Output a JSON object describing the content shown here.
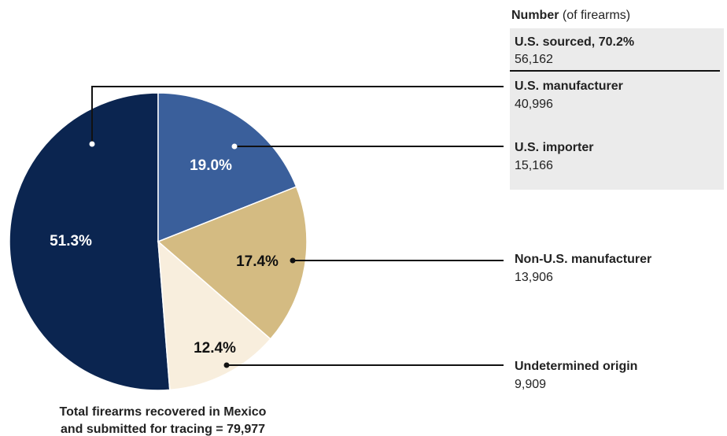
{
  "chart_data": {
    "type": "pie",
    "legend_title": "Number",
    "legend_subtitle": "(of firearms)",
    "group_label": "U.S. sourced, 70.2%",
    "group_count_label": "56,162",
    "categories": [
      "U.S. manufacturer",
      "U.S. importer",
      "Non-U.S. manufacturer",
      "Undetermined origin"
    ],
    "values": [
      51.3,
      19.0,
      17.4,
      12.4
    ],
    "value_labels": [
      "51.3%",
      "19.0%",
      "17.4%",
      "12.4%"
    ],
    "counts": [
      40996,
      15166,
      13906,
      9909
    ],
    "count_labels": [
      "40,996",
      "15,166",
      "13,906",
      "9,909"
    ],
    "colors": [
      "#0b2550",
      "#3a5f9b",
      "#d4bb82",
      "#f8eedd"
    ],
    "footer": [
      "Total firearms recovered in Mexico",
      "and submitted for tracing = 79,977"
    ]
  }
}
